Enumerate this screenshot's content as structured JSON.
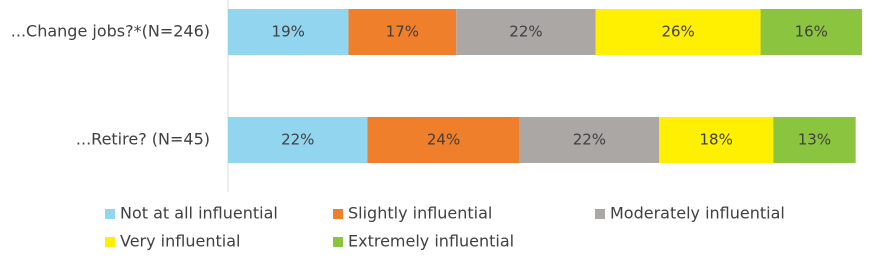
{
  "chart_data": {
    "type": "stacked-bar-horizontal",
    "categories": [
      "...Change jobs?*(N=246)",
      "...Retire? (N=45)"
    ],
    "xlim": [
      0,
      100
    ],
    "series": [
      {
        "name": "Not at all influential",
        "color": "#92d5ef",
        "values": [
          19,
          22
        ],
        "value_labels": [
          "19%",
          "22%"
        ]
      },
      {
        "name": "Slightly influential",
        "color": "#f07f2c",
        "values": [
          17,
          24
        ],
        "value_labels": [
          "17%",
          "24%"
        ]
      },
      {
        "name": "Moderately influential",
        "color": "#aba7a4",
        "values": [
          22,
          22
        ],
        "value_labels": [
          "22%",
          "22%"
        ]
      },
      {
        "name": "Very influential",
        "color": "#ffef00",
        "values": [
          26,
          18
        ],
        "value_labels": [
          "26%",
          "18%"
        ]
      },
      {
        "name": "Extremely influential",
        "color": "#8bc540",
        "values": [
          16,
          13
        ],
        "value_labels": [
          "16%",
          "13%"
        ]
      }
    ]
  }
}
